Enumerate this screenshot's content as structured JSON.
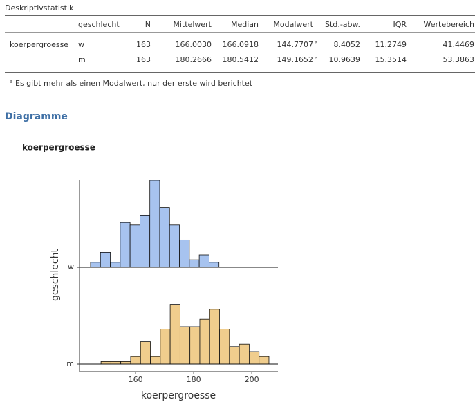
{
  "table": {
    "title": "Deskriptivstatistik",
    "columns": [
      "geschlecht",
      "N",
      "Mittelwert",
      "Median",
      "Modalwert",
      "Std.-abw.",
      "IQR",
      "Wertebereich"
    ],
    "variable": "koerpergroesse",
    "rows": [
      {
        "group": "w",
        "cells": [
          "163",
          "166.0030",
          "166.0918",
          "144.7707",
          "8.4052",
          "11.2749",
          "41.4469"
        ],
        "modal_marker": "a"
      },
      {
        "group": "m",
        "cells": [
          "163",
          "180.2666",
          "180.5412",
          "149.1652",
          "10.9639",
          "15.3514",
          "53.3863"
        ],
        "modal_marker": "a"
      }
    ],
    "footnote": {
      "marker": "a",
      "text": "Es gibt mehr als einen Modalwert, nur der erste wird berichtet"
    }
  },
  "section_heading": "Diagramme",
  "chart_data": {
    "type": "histogram",
    "title": "koerpergroesse",
    "x_label": "koerpergroesse",
    "y_label": "geschlecht",
    "xlim": [
      140.7,
      209
    ],
    "xticks": [
      160,
      180,
      200
    ],
    "series": [
      {
        "name": "w",
        "color": "#a7c3ef",
        "bins": [
          144.5,
          147.9,
          151.3,
          154.7,
          158.1,
          161.5,
          164.9,
          168.3,
          171.7,
          175.1,
          178.5,
          181.9,
          185.3,
          188.7
        ],
        "values": [
          2,
          6,
          2,
          18,
          17,
          21,
          35,
          24,
          17,
          11,
          3,
          5,
          2
        ]
      },
      {
        "name": "m",
        "color": "#f0cd8d",
        "bins": [
          148.1,
          151.5,
          154.9,
          158.3,
          161.7,
          165.1,
          168.5,
          171.9,
          175.3,
          178.7,
          182.1,
          185.5,
          188.9,
          192.3,
          195.7,
          199.1,
          202.5,
          205.9
        ],
        "values": [
          1,
          1,
          1,
          3,
          9,
          3,
          14,
          24,
          15,
          15,
          18,
          22,
          14,
          7,
          8,
          5,
          3
        ]
      }
    ]
  }
}
